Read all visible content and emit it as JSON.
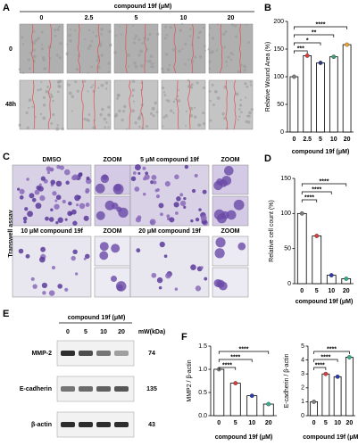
{
  "panels": {
    "a": "A",
    "b": "B",
    "c": "C",
    "d": "D",
    "e": "E",
    "f": "F"
  },
  "wound_assay": {
    "header": "compound 19f (μM)",
    "columns": [
      "0",
      "2.5",
      "5",
      "10",
      "20"
    ],
    "rows": [
      "0",
      "48h"
    ]
  },
  "transwell": {
    "side_label": "Transwell assay",
    "labels": [
      "DMSO",
      "ZOOM",
      "5 μM compound 19f",
      "ZOOM",
      "10 μM compound 19f",
      "ZOOM",
      "20 μM compound 19f",
      "ZOOM"
    ]
  },
  "western_blot": {
    "header": "compound 19f (μM)",
    "lanes": [
      "0",
      "5",
      "10",
      "20"
    ],
    "mw_header": "mW(kDa)",
    "rows": [
      {
        "label": "MMP-2",
        "mw": 74
      },
      {
        "label": "E-cadherin",
        "mw": 135
      },
      {
        "label": "β-actin",
        "mw": 43
      }
    ]
  },
  "chart_data": [
    {
      "type": "bar",
      "ylabel": "Relative Wound Area (%)",
      "xlabel": "compound 19f (μM)",
      "categories": [
        "0",
        "2.5",
        "5",
        "10",
        "20"
      ],
      "values": [
        100,
        138,
        125,
        136,
        158
      ],
      "colors": [
        "#808080",
        "#e03a3a",
        "#2a3a8a",
        "#3aa070",
        "#f5a623"
      ],
      "ylim": [
        0,
        200
      ],
      "yticks": [
        0,
        50,
        100,
        150,
        200
      ],
      "significance": [
        {
          "from": "0",
          "to": "2.5",
          "label": "***"
        },
        {
          "from": "0",
          "to": "5",
          "label": "*"
        },
        {
          "from": "0",
          "to": "10",
          "label": "**"
        },
        {
          "from": "0",
          "to": "20",
          "label": "****"
        }
      ]
    },
    {
      "type": "bar",
      "ylabel": "Relative cell count (%)",
      "xlabel": "compound 19f (μM)",
      "categories": [
        "0",
        "5",
        "10",
        "20"
      ],
      "values": [
        100,
        68,
        12,
        7
      ],
      "colors": [
        "#808080",
        "#e03a3a",
        "#2a3ab0",
        "#30b090"
      ],
      "ylim": [
        0,
        150
      ],
      "yticks": [
        0,
        50,
        100,
        150
      ],
      "significance": [
        {
          "from": "0",
          "to": "5",
          "label": "****"
        },
        {
          "from": "0",
          "to": "10",
          "label": "****"
        },
        {
          "from": "0",
          "to": "20",
          "label": "****"
        }
      ]
    },
    {
      "type": "bar",
      "ylabel": "MMP2 / β-actin",
      "xlabel": "compound 19f (μM)",
      "categories": [
        "0",
        "5",
        "10",
        "20"
      ],
      "values": [
        1.0,
        0.7,
        0.43,
        0.25
      ],
      "colors": [
        "#808080",
        "#e03a3a",
        "#2a3ab0",
        "#30b090"
      ],
      "ylim": [
        0,
        1.5
      ],
      "yticks": [
        {
          "value": 0,
          "label": "0.0"
        },
        0.5,
        {
          "value": 1,
          "label": "1.0"
        },
        1.5
      ],
      "significance": [
        {
          "from": "0",
          "to": "5",
          "label": "****"
        },
        {
          "from": "0",
          "to": "10",
          "label": "****"
        },
        {
          "from": "0",
          "to": "20",
          "label": "****"
        }
      ]
    },
    {
      "type": "bar",
      "ylabel": "E-cadherin / β-actin",
      "xlabel": "compound 19f (μM)",
      "categories": [
        "0",
        "5",
        "10",
        "20"
      ],
      "values": [
        1.0,
        3.0,
        2.8,
        4.2
      ],
      "colors": [
        "#808080",
        "#e03a3a",
        "#2a3ab0",
        "#30b090"
      ],
      "ylim": [
        0,
        5
      ],
      "yticks": [
        0,
        1,
        2,
        3,
        4,
        5
      ],
      "significance": [
        {
          "from": "0",
          "to": "5",
          "label": "****"
        },
        {
          "from": "0",
          "to": "10",
          "label": "****"
        },
        {
          "from": "0",
          "to": "20",
          "label": "****"
        }
      ]
    }
  ]
}
